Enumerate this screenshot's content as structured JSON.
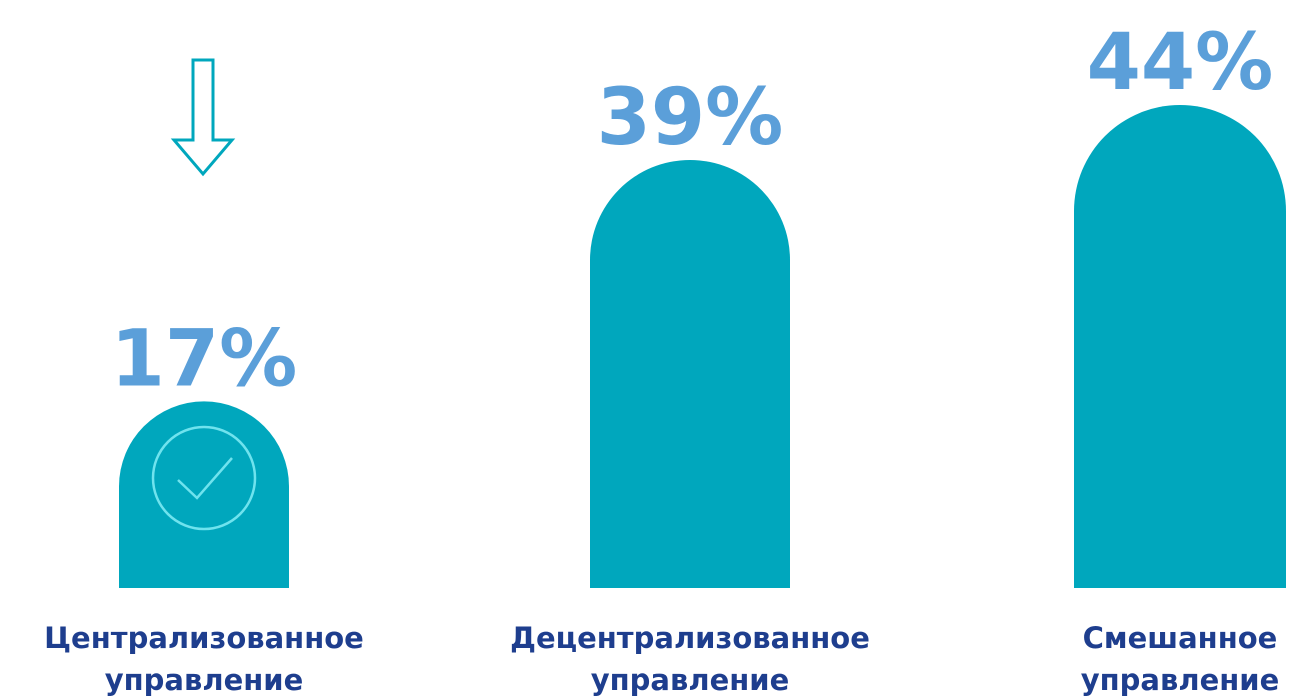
{
  "chart_data": {
    "type": "bar",
    "categories": [
      "Централизованное управление",
      "Децентрализованное управление",
      "Смешанное управление"
    ],
    "values": [
      17,
      39,
      44
    ],
    "value_labels": [
      "17%",
      "39%",
      "44%"
    ],
    "color": "#00a7bd"
  }
}
